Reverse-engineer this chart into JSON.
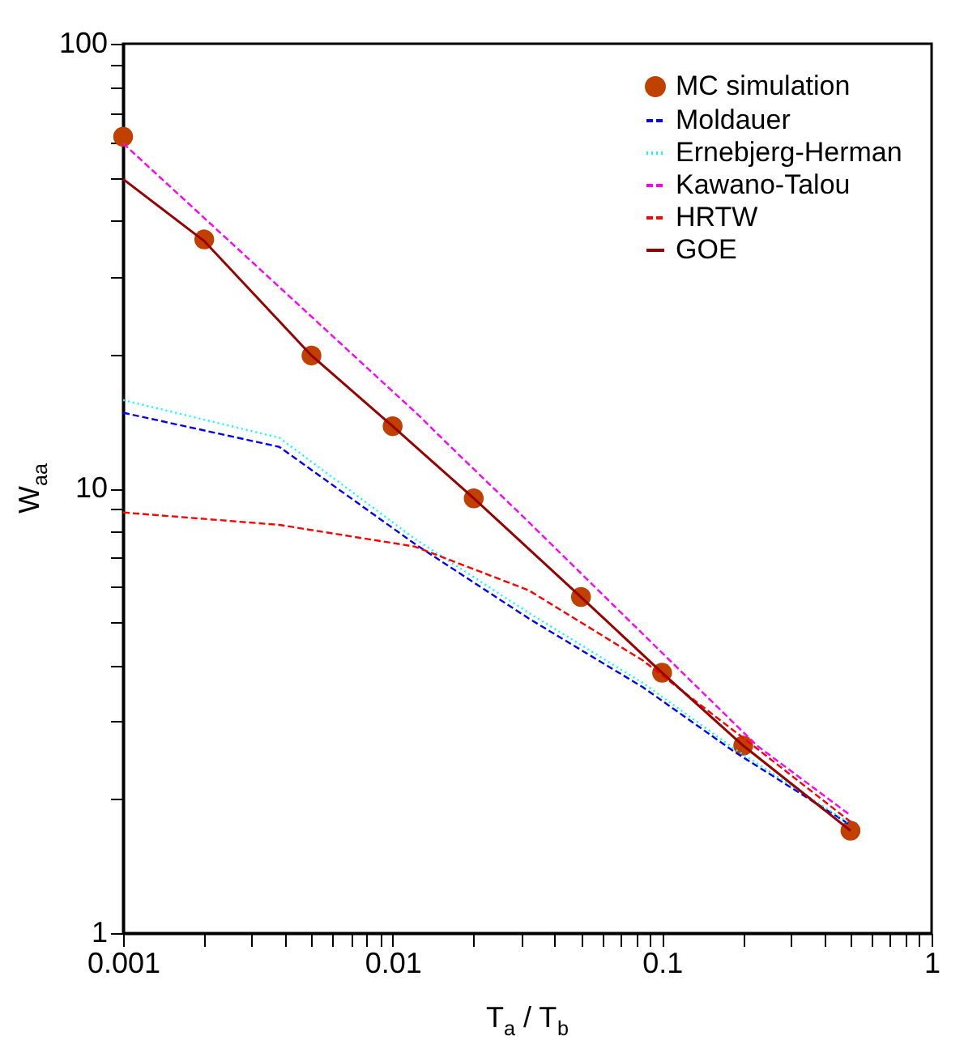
{
  "chart_data": {
    "type": "line",
    "xlabel": "T$_{a}$ / T$_{b}$",
    "ylabel": "W$_{aa}$",
    "log": "xy",
    "legend": "top right",
    "grid": false,
    "xlim": [
      0.001,
      1
    ],
    "ylim": [
      1,
      100
    ],
    "xticks": [
      0.001,
      {
        "value": 0.002,
        "label": null
      },
      {
        "value": 0.003,
        "label": null
      },
      {
        "value": 0.004,
        "label": null
      },
      {
        "value": 0.005,
        "label": null
      },
      {
        "value": 0.006,
        "label": null
      },
      {
        "value": 0.007,
        "label": null
      },
      {
        "value": 0.008,
        "label": null
      },
      {
        "value": 0.009,
        "label": null
      },
      0.01,
      {
        "value": 0.02,
        "label": null
      },
      {
        "value": 0.03,
        "label": null
      },
      {
        "value": 0.04,
        "label": null
      },
      {
        "value": 0.05,
        "label": null
      },
      {
        "value": 0.06,
        "label": null
      },
      {
        "value": 0.07,
        "label": null
      },
      {
        "value": 0.08,
        "label": null
      },
      {
        "value": 0.09,
        "label": null
      },
      0.1,
      {
        "value": 0.2,
        "label": null
      },
      {
        "value": 0.3,
        "label": null
      },
      {
        "value": 0.4,
        "label": null
      },
      {
        "value": 0.5,
        "label": null
      },
      {
        "value": 0.6,
        "label": null
      },
      {
        "value": 0.7,
        "label": null
      },
      {
        "value": 0.8,
        "label": null
      },
      {
        "value": 0.9,
        "label": null
      },
      1
    ],
    "yticks": [
      1,
      {
        "value": 2,
        "label": null
      },
      {
        "value": 3,
        "label": null
      },
      {
        "value": 4,
        "label": null
      },
      {
        "value": 5,
        "label": null
      },
      {
        "value": 6,
        "label": null
      },
      {
        "value": 7,
        "label": null
      },
      {
        "value": 8,
        "label": null
      },
      {
        "value": 9,
        "label": null
      },
      10,
      {
        "value": 20,
        "label": null
      },
      {
        "value": 30,
        "label": null
      },
      {
        "value": 40,
        "label": null
      },
      {
        "value": 50,
        "label": null
      },
      {
        "value": 60,
        "label": null
      },
      {
        "value": 70,
        "label": null
      },
      {
        "value": 80,
        "label": null
      },
      {
        "value": 90,
        "label": null
      },
      100
    ],
    "series": [
      {
        "name": "MC simulation",
        "type": "scatter",
        "marker": "circle",
        "color": "#c04000",
        "x": [
          0.001,
          0.002,
          0.005,
          0.01,
          0.02,
          0.05,
          0.1,
          0.2,
          0.5
        ],
        "values": [
          61.8,
          36.3,
          19.9,
          13.8,
          9.5,
          5.7,
          3.85,
          2.64,
          1.7
        ]
      },
      {
        "name": "Moldauer",
        "line_style": "dashed",
        "color": "#0000ff",
        "x": [
          0.001,
          0.0038,
          0.0121,
          0.032,
          0.085,
          0.185,
          0.5
        ],
        "values": [
          14.8,
          12.4,
          7.5,
          5.1,
          3.57,
          2.56,
          1.75
        ]
      },
      {
        "name": "Ernebjerg-Herman",
        "line_style": "dotted",
        "color": "#00ffff",
        "x": [
          0.001,
          0.0038,
          0.0121,
          0.032,
          0.085,
          0.185,
          0.5
        ],
        "values": [
          15.8,
          13.0,
          7.7,
          5.25,
          3.65,
          2.6,
          1.76
        ]
      },
      {
        "name": "Kawano-Talou",
        "line_style": "dashed",
        "color": "#ff00ff",
        "x": [
          0.001,
          0.0125,
          0.0162,
          0.032,
          0.085,
          0.225,
          0.5
        ],
        "values": [
          59.7,
          14.6,
          12.5,
          8.4,
          4.7,
          2.64,
          1.84
        ]
      },
      {
        "name": "HRTW",
        "line_style": "dashed",
        "color": "#ff0000",
        "x": [
          0.001,
          0.0038,
          0.0121,
          0.032,
          0.085,
          0.225,
          0.5
        ],
        "values": [
          8.83,
          8.28,
          7.4,
          5.9,
          4.1,
          2.6,
          1.78
        ]
      },
      {
        "name": "GOE",
        "line_style": "solid",
        "color": "#990000",
        "x": [
          0.001,
          0.002,
          0.005,
          0.01,
          0.02,
          0.05,
          0.1,
          0.2,
          0.5
        ],
        "values": [
          49.6,
          36.0,
          19.9,
          13.8,
          9.5,
          5.7,
          3.85,
          2.64,
          1.7
        ]
      }
    ]
  }
}
